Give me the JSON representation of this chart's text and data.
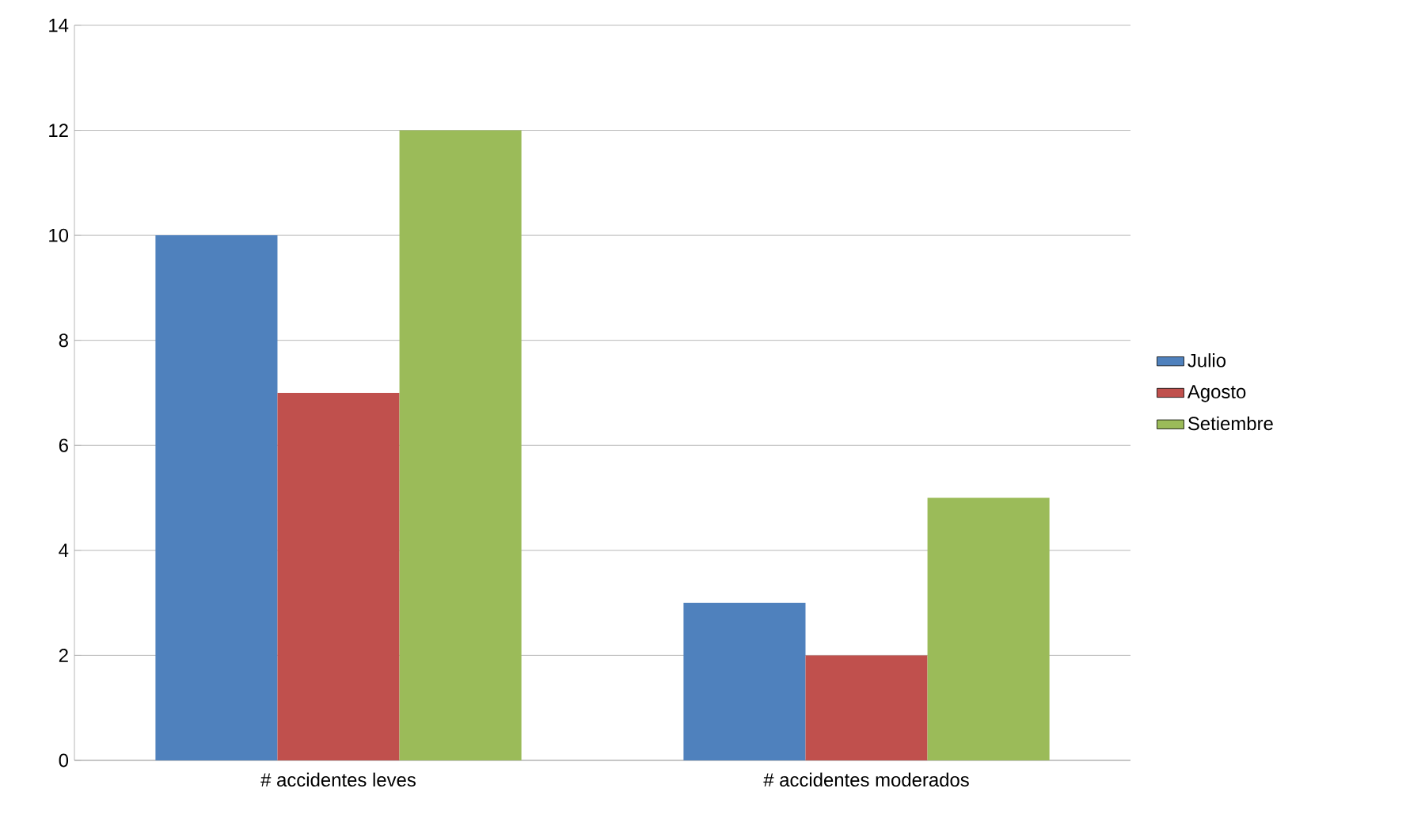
{
  "chart_data": {
    "type": "bar",
    "categories": [
      "# accidentes leves",
      "# accidentes moderados"
    ],
    "series": [
      {
        "name": "Julio",
        "color": "#4f81bd",
        "values": [
          10,
          3
        ]
      },
      {
        "name": "Agosto",
        "color": "#c0504d",
        "values": [
          7,
          2
        ]
      },
      {
        "name": "Setiembre",
        "color": "#9bbb59",
        "values": [
          12,
          5
        ]
      }
    ],
    "ylim": [
      0,
      14
    ],
    "yticks": [
      0,
      2,
      4,
      6,
      8,
      10,
      12,
      14
    ],
    "grid": "y",
    "legend": "right"
  }
}
